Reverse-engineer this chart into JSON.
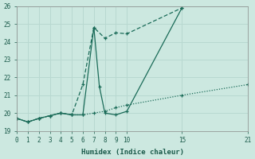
{
  "xlabel": "Humidex (Indice chaleur)",
  "bg_color": "#cce8e0",
  "grid_color": "#b8d8d0",
  "line_color": "#1a6b58",
  "line1": {
    "x": [
      0,
      1,
      2,
      3,
      4,
      5,
      6,
      7,
      8,
      9,
      10,
      15,
      21
    ],
    "y": [
      19.7,
      19.5,
      19.7,
      19.85,
      20.0,
      19.9,
      19.9,
      20.0,
      20.1,
      20.3,
      20.45,
      21.0,
      21.6
    ]
  },
  "line2": {
    "x": [
      0,
      1,
      2,
      3,
      4,
      5,
      6,
      7,
      8,
      9,
      10,
      15
    ],
    "y": [
      19.7,
      19.5,
      19.7,
      19.85,
      20.0,
      19.9,
      21.6,
      24.8,
      24.2,
      24.5,
      24.45,
      25.9
    ]
  },
  "line3": {
    "x": [
      0,
      1,
      2,
      3,
      4,
      5,
      6,
      7,
      7.5,
      8,
      9,
      10,
      15
    ],
    "y": [
      19.7,
      19.5,
      19.7,
      19.85,
      20.0,
      19.9,
      19.9,
      24.8,
      21.5,
      20.0,
      19.9,
      20.1,
      25.9
    ]
  },
  "xlim": [
    0,
    21
  ],
  "ylim": [
    19,
    26
  ],
  "xticks": [
    0,
    1,
    2,
    3,
    4,
    5,
    6,
    7,
    8,
    9,
    10,
    15,
    21
  ],
  "yticks": [
    19,
    20,
    21,
    22,
    23,
    24,
    25,
    26
  ]
}
